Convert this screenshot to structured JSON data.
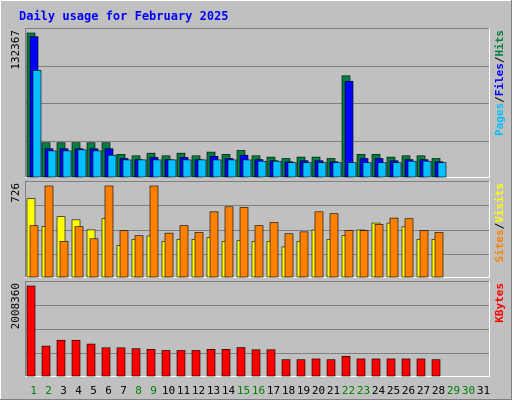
{
  "chart_data": {
    "type": "bar",
    "title": "Daily usage for February 2025",
    "days": [
      1,
      2,
      3,
      4,
      5,
      6,
      7,
      8,
      9,
      10,
      11,
      12,
      13,
      14,
      15,
      16,
      17,
      18,
      19,
      20,
      21,
      22,
      23,
      24,
      25,
      26,
      27,
      28,
      29,
      30,
      31
    ],
    "weekend_days": [
      1,
      2,
      8,
      9,
      15,
      16,
      22,
      23,
      29,
      30
    ],
    "panels": [
      {
        "name": "hits-files-pages",
        "max_label": "132367",
        "ymax": 132367,
        "legend": [
          {
            "text": "Pages",
            "color": "#00c0ff"
          },
          {
            "text": "Files",
            "color": "#0000ff"
          },
          {
            "text": "Hits",
            "color": "#008040"
          }
        ],
        "series": [
          {
            "name": "Hits",
            "color": "#008040",
            "values": [
              132367,
              31500,
              31500,
              31500,
              31500,
              31500,
              20800,
              19500,
              21900,
              19500,
              21900,
              19500,
              22900,
              20800,
              24400,
              19500,
              18300,
              17000,
              18300,
              18300,
              17000,
              93000,
              20800,
              20800,
              18300,
              19500,
              19500,
              17000,
              0,
              0,
              0
            ]
          },
          {
            "name": "Files",
            "color": "#0000ff",
            "values": [
              129000,
              26000,
              26000,
              26000,
              26000,
              26000,
              17000,
              16000,
              18000,
              16000,
              18000,
              16000,
              19000,
              17000,
              20000,
              16000,
              15000,
              14000,
              15000,
              15000,
              14000,
              88000,
              17000,
              17000,
              15000,
              16000,
              16000,
              14000,
              0,
              0,
              0
            ]
          },
          {
            "name": "Pages",
            "color": "#00c0ff",
            "values": [
              98000,
              24000,
              24000,
              25000,
              24000,
              20000,
              15700,
              15700,
              15700,
              15700,
              15700,
              15700,
              15700,
              15700,
              15700,
              14500,
              14500,
              13200,
              13200,
              13200,
              13200,
              13200,
              13200,
              13200,
              13200,
              14500,
              14500,
              13200,
              0,
              0,
              0
            ]
          }
        ]
      },
      {
        "name": "visits-sites",
        "max_label": "726",
        "ymax": 726,
        "legend": [
          {
            "text": "Sites",
            "color": "#ff8000"
          },
          {
            "text": "Visits",
            "color": "#ffff00"
          }
        ],
        "series": [
          {
            "name": "Visits",
            "color": "#ffff00",
            "values": [
              625,
              402,
              481,
              456,
              376,
              467,
              250,
              300,
              327,
              285,
              300,
              300,
              315,
              285,
              290,
              285,
              285,
              240,
              285,
              375,
              300,
              330,
              375,
              430,
              430,
              400,
              300,
              300,
              0,
              0,
              0
            ]
          },
          {
            "name": "Sites",
            "color": "#ff8000",
            "values": [
              410,
              726,
              285,
              402,
              305,
              726,
              370,
              330,
              726,
              350,
              410,
              355,
              520,
              560,
              555,
              410,
              435,
              345,
              360,
              520,
              505,
              370,
              370,
              420,
              470,
              465,
              370,
              355,
              0,
              0,
              0
            ]
          }
        ]
      },
      {
        "name": "kbytes",
        "max_label": "2008360",
        "ymax": 2008360,
        "legend": [
          {
            "text": "KBytes",
            "color": "#ff0000"
          }
        ],
        "series": [
          {
            "name": "KBytes",
            "color": "#ff0000",
            "values": [
              2008360,
              667000,
              798000,
              798000,
              713000,
              630000,
              630000,
              610000,
              595000,
              570000,
              570000,
              570000,
              595000,
              595000,
              635000,
              585000,
              585000,
              365000,
              365000,
              380000,
              365000,
              440000,
              380000,
              380000,
              380000,
              380000,
              380000,
              365000,
              0,
              0,
              0
            ]
          }
        ]
      }
    ]
  }
}
